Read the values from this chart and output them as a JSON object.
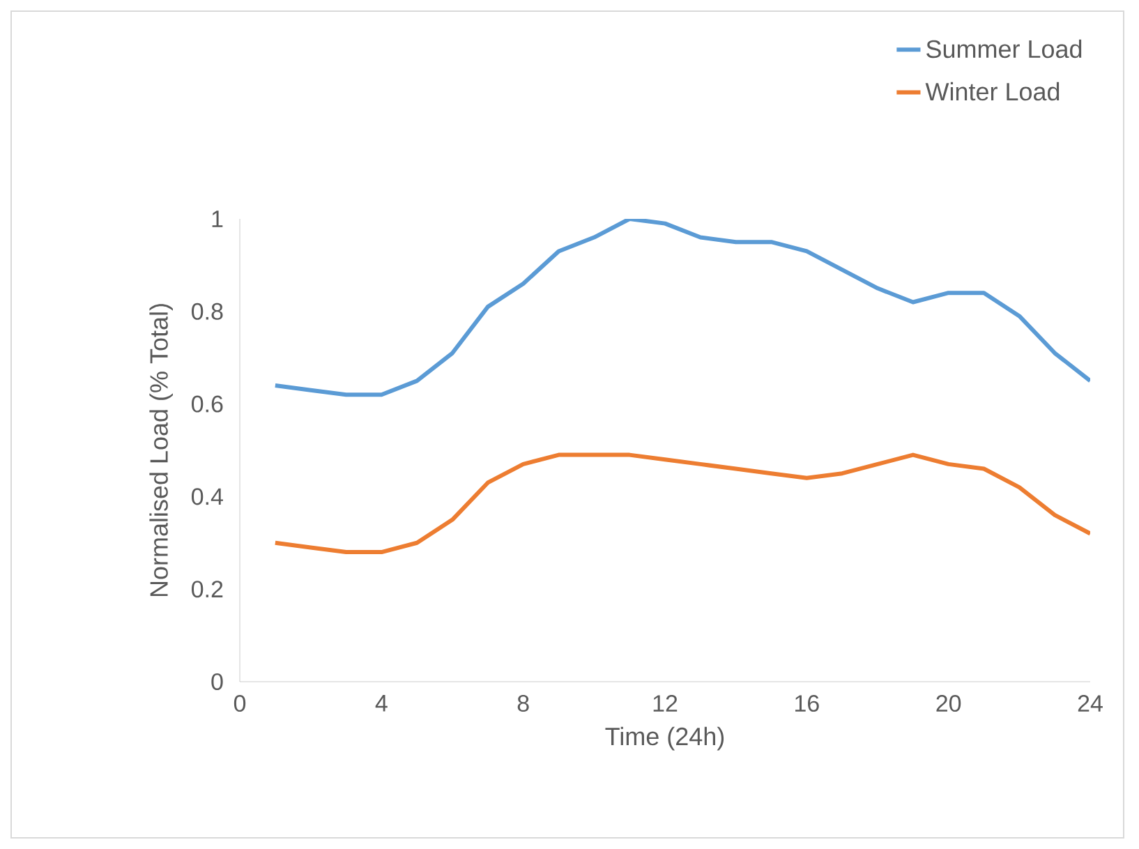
{
  "chart_data": {
    "type": "line",
    "xlabel": "Time (24h)",
    "ylabel": "Normalised Load (% Total)",
    "x": [
      1,
      2,
      3,
      4,
      5,
      6,
      7,
      8,
      9,
      10,
      11,
      12,
      13,
      14,
      15,
      16,
      17,
      18,
      19,
      20,
      21,
      22,
      23,
      24
    ],
    "series": [
      {
        "name": "Summer Load",
        "color": "#5b9bd5",
        "values": [
          0.64,
          0.63,
          0.62,
          0.62,
          0.65,
          0.71,
          0.81,
          0.86,
          0.93,
          0.96,
          1.0,
          0.99,
          0.96,
          0.95,
          0.95,
          0.93,
          0.89,
          0.85,
          0.82,
          0.84,
          0.84,
          0.79,
          0.71,
          0.65
        ]
      },
      {
        "name": "Winter Load",
        "color": "#ed7d31",
        "values": [
          0.3,
          0.29,
          0.28,
          0.28,
          0.3,
          0.35,
          0.43,
          0.47,
          0.49,
          0.49,
          0.49,
          0.48,
          0.47,
          0.46,
          0.45,
          0.44,
          0.45,
          0.47,
          0.49,
          0.47,
          0.46,
          0.42,
          0.36,
          0.32
        ]
      }
    ],
    "xlim": [
      0,
      24
    ],
    "xticks": [
      0,
      4,
      8,
      12,
      16,
      20,
      24
    ],
    "ylim": [
      0,
      1
    ],
    "yticks": [
      0,
      0.2,
      0.4,
      0.6,
      0.8,
      1
    ],
    "grid": false,
    "legend": "top right",
    "marker": "none",
    "line_style": "solid"
  }
}
